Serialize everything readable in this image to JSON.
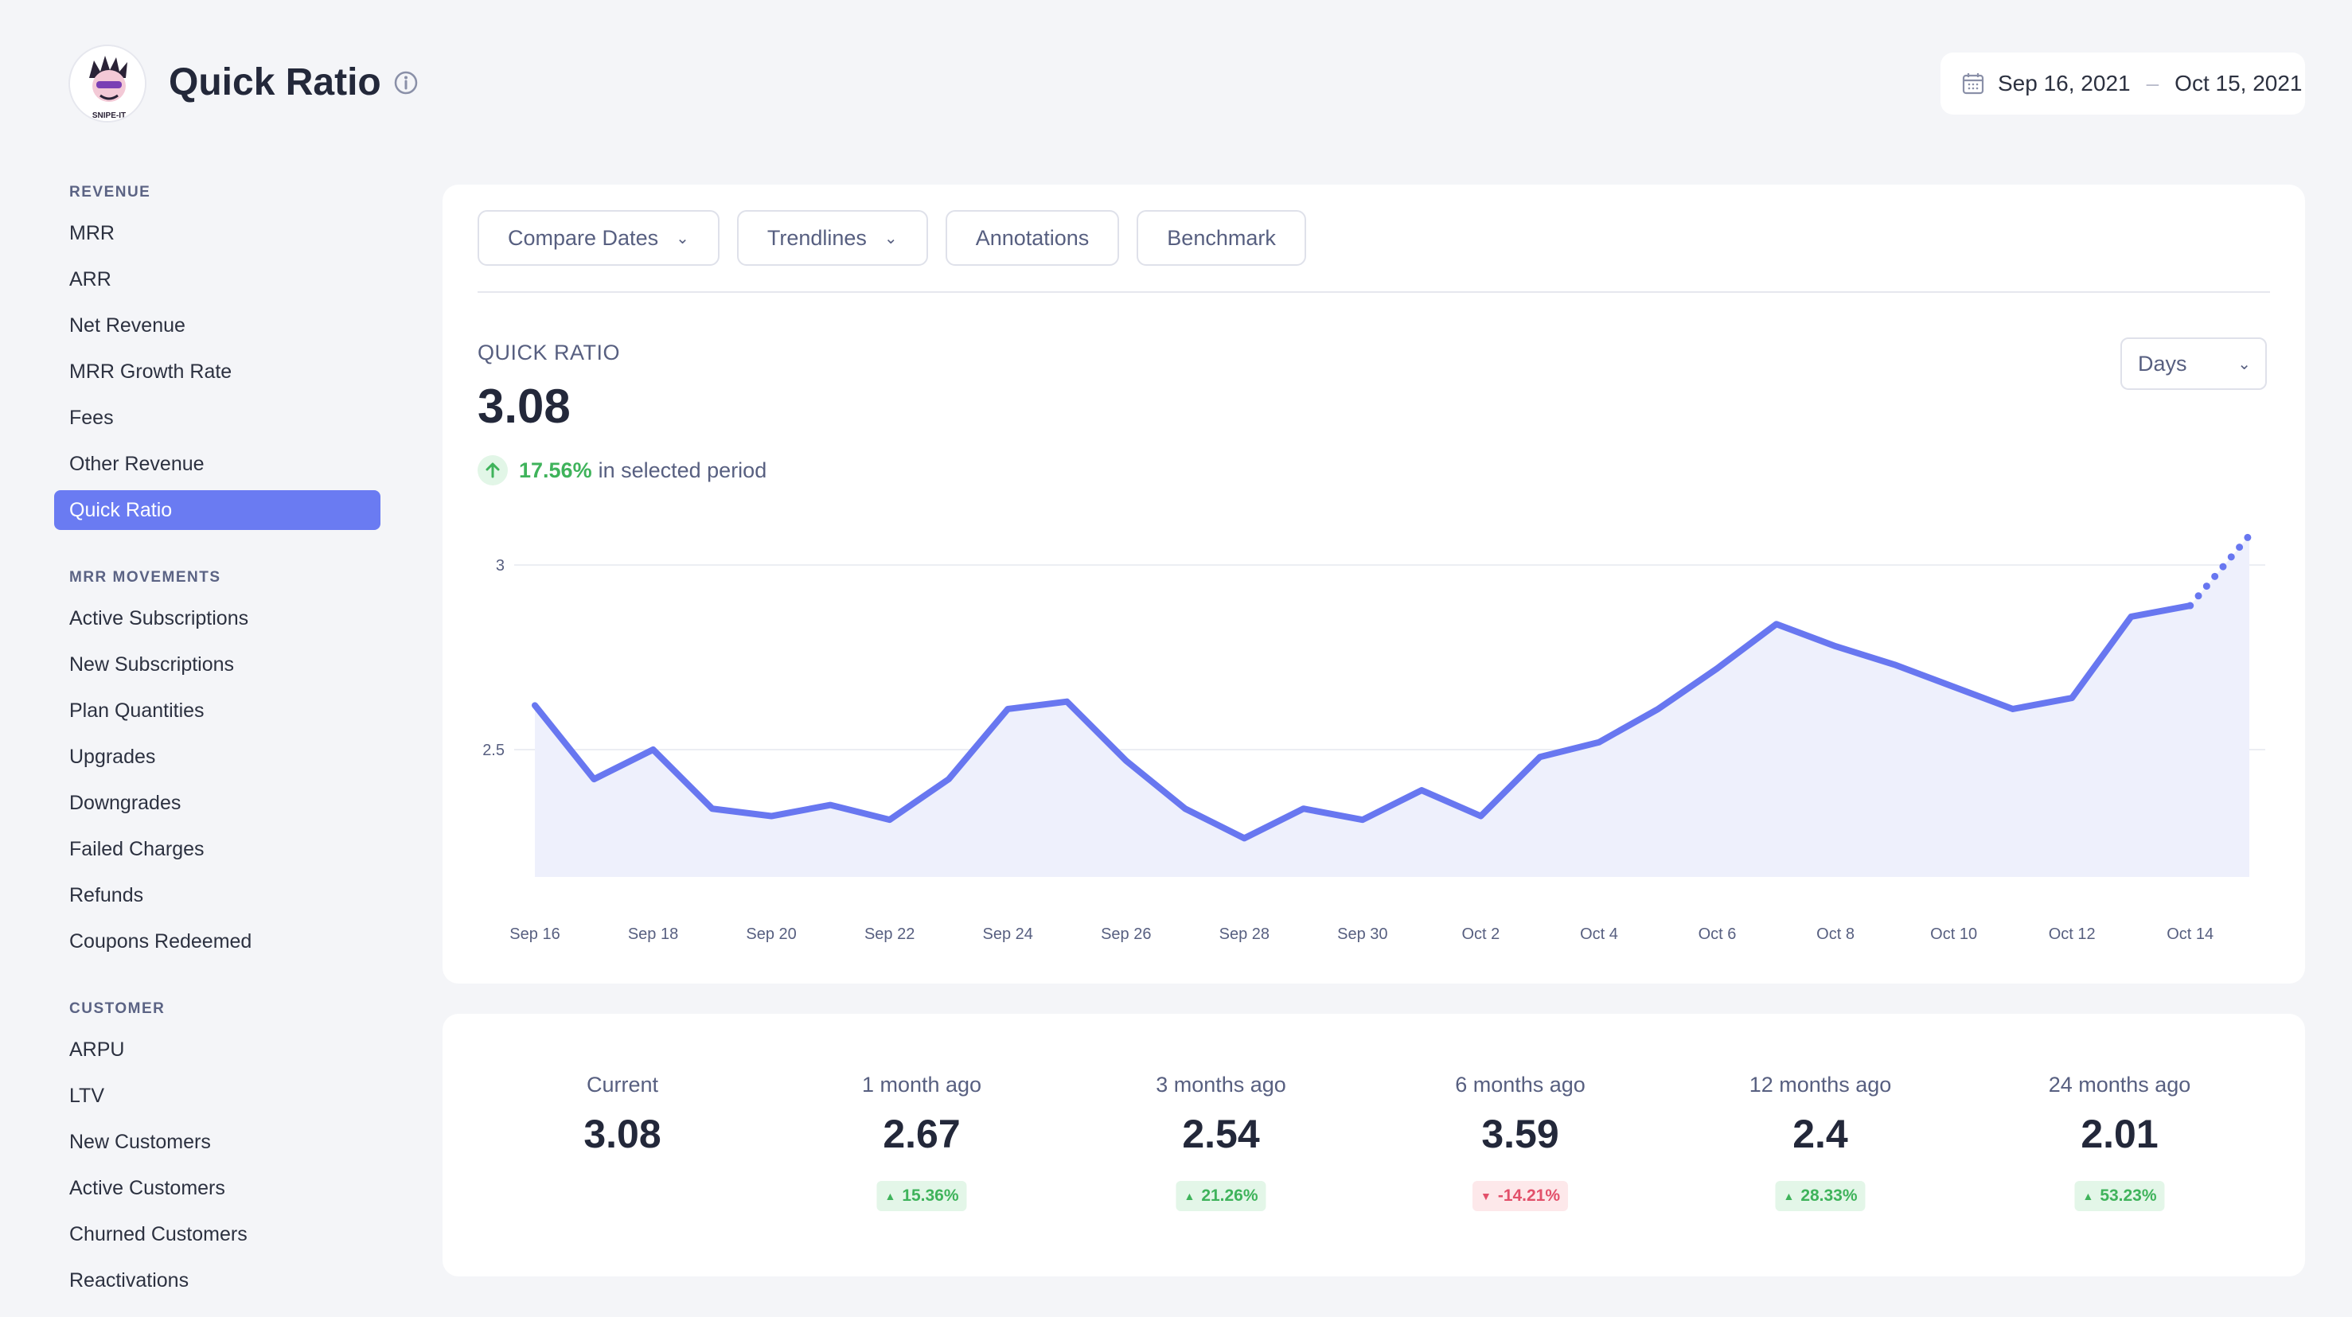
{
  "header": {
    "title": "Quick Ratio",
    "logo_text": "SNIPE-IT",
    "date_start": "Sep 16, 2021",
    "date_end": "Oct 15, 2021",
    "date_separator": "–"
  },
  "sidebar": {
    "sections": [
      {
        "title": "REVENUE",
        "items": [
          "MRR",
          "ARR",
          "Net Revenue",
          "MRR Growth Rate",
          "Fees",
          "Other Revenue",
          "Quick Ratio"
        ]
      },
      {
        "title": "MRR MOVEMENTS",
        "items": [
          "Active Subscriptions",
          "New Subscriptions",
          "Plan Quantities",
          "Upgrades",
          "Downgrades",
          "Failed Charges",
          "Refunds",
          "Coupons Redeemed"
        ]
      },
      {
        "title": "CUSTOMER",
        "items": [
          "ARPU",
          "LTV",
          "New Customers",
          "Active Customers",
          "Churned Customers",
          "Reactivations"
        ]
      }
    ],
    "active_item": "Quick Ratio"
  },
  "toolbar": {
    "compare_dates": "Compare Dates",
    "trendlines": "Trendlines",
    "annotations": "Annotations",
    "benchmark": "Benchmark"
  },
  "metric": {
    "label": "QUICK RATIO",
    "value": "3.08",
    "change_pct": "17.56%",
    "change_text": "in selected period",
    "interval": "Days"
  },
  "chart_data": {
    "type": "area",
    "x": [
      "Sep 16",
      "Sep 17",
      "Sep 18",
      "Sep 19",
      "Sep 20",
      "Sep 21",
      "Sep 22",
      "Sep 23",
      "Sep 24",
      "Sep 25",
      "Sep 26",
      "Sep 27",
      "Sep 28",
      "Sep 29",
      "Sep 30",
      "Oct 1",
      "Oct 2",
      "Oct 3",
      "Oct 4",
      "Oct 5",
      "Oct 6",
      "Oct 7",
      "Oct 8",
      "Oct 9",
      "Oct 10",
      "Oct 11",
      "Oct 12",
      "Oct 13",
      "Oct 14",
      "Oct 15"
    ],
    "x_tick_labels": [
      "Sep 16",
      "Sep 18",
      "Sep 20",
      "Sep 22",
      "Sep 24",
      "Sep 26",
      "Sep 28",
      "Sep 30",
      "Oct 2",
      "Oct 4",
      "Oct 6",
      "Oct 8",
      "Oct 10",
      "Oct 12",
      "Oct 14"
    ],
    "values": [
      2.62,
      2.42,
      2.5,
      2.34,
      2.32,
      2.35,
      2.31,
      2.42,
      2.61,
      2.63,
      2.47,
      2.34,
      2.26,
      2.34,
      2.31,
      2.39,
      2.32,
      2.48,
      2.52,
      2.61,
      2.72,
      2.84,
      2.78,
      2.73,
      2.67,
      2.61,
      2.64,
      2.86,
      2.89,
      3.08
    ],
    "partial_last_point": true,
    "y_ticks": [
      2.5,
      3
    ],
    "y_tick_labels": [
      "2.5",
      "3"
    ],
    "ylim": [
      2.1,
      3.2
    ],
    "grid": true,
    "color": "#6877f0",
    "fill_color": "#eef0fc"
  },
  "comparison": [
    {
      "label": "Current",
      "value": "3.08",
      "change": null
    },
    {
      "label": "1 month ago",
      "value": "2.67",
      "change": "15.36%",
      "direction": "up"
    },
    {
      "label": "3 months ago",
      "value": "2.54",
      "change": "21.26%",
      "direction": "up"
    },
    {
      "label": "6 months ago",
      "value": "3.59",
      "change": "-14.21%",
      "direction": "down"
    },
    {
      "label": "12 months ago",
      "value": "2.4",
      "change": "28.33%",
      "direction": "up"
    },
    {
      "label": "24 months ago",
      "value": "2.01",
      "change": "53.23%",
      "direction": "up"
    }
  ]
}
